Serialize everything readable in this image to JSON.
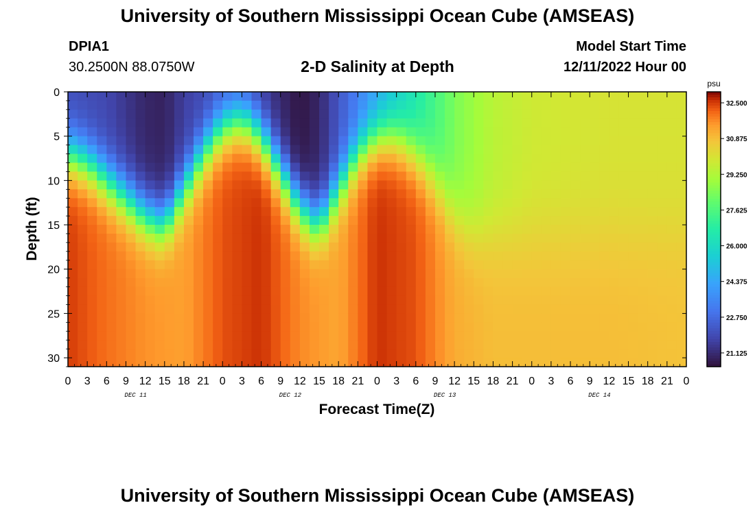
{
  "page": {
    "title": "University of Southern Mississippi Ocean Cube (AMSEAS)",
    "title_repeat": "University of Southern Mississippi Ocean Cube (AMSEAS)",
    "station_id": "DPIA1",
    "station_coords": "30.2500N  88.0750W",
    "plot_title": "2-D Salinity at Depth",
    "model_start_label": "Model Start Time",
    "model_start_value": "12/11/2022 Hour 00"
  },
  "chart_data": {
    "type": "heatmap",
    "title": "2-D Salinity at Depth",
    "xlabel": "Forecast Time(Z)",
    "ylabel": "Depth (ft)",
    "x_range_hours": [
      0,
      96
    ],
    "y_range_ft": [
      0,
      31
    ],
    "y_inverted": true,
    "x_tick_step_hours": 3,
    "x_tick_labels": [
      "0",
      "3",
      "6",
      "9",
      "12",
      "15",
      "18",
      "21",
      "0",
      "3",
      "6",
      "9",
      "12",
      "15",
      "18",
      "21",
      "0",
      "3",
      "6",
      "9",
      "12",
      "15",
      "18",
      "21",
      "0",
      "3",
      "6",
      "9",
      "12",
      "15",
      "18",
      "21",
      "0"
    ],
    "y_ticks": [
      0,
      5,
      10,
      15,
      20,
      25,
      30
    ],
    "day_labels": [
      "DEC 11",
      "DEC 12",
      "DEC 13",
      "DEC 14"
    ],
    "colorbar": {
      "unit": "psu",
      "min": 20.5,
      "max": 33.0,
      "tick_values": [
        32.5,
        30.875,
        29.25,
        27.625,
        26.0,
        24.375,
        22.75,
        21.125
      ],
      "tick_labels": [
        "32.500",
        "30.875",
        "29.250",
        "27.625",
        "26.000",
        "24.375",
        "22.750",
        "21.125"
      ]
    },
    "field_model": {
      "hour_step": 1.5,
      "depth_step_ft": 1,
      "surface_salinity": [
        [
          0,
          22.0
        ],
        [
          6,
          21.8
        ],
        [
          12,
          21.0
        ],
        [
          15,
          20.9
        ],
        [
          18,
          21.6
        ],
        [
          24,
          22.2
        ],
        [
          27,
          22.0
        ],
        [
          30,
          21.5
        ],
        [
          36,
          20.6
        ],
        [
          39,
          21.0
        ],
        [
          42,
          22.2
        ],
        [
          46,
          23.6
        ],
        [
          50,
          25.0
        ],
        [
          55,
          26.8
        ],
        [
          60,
          28.4
        ],
        [
          66,
          29.4
        ],
        [
          72,
          29.8
        ],
        [
          84,
          30.0
        ],
        [
          96,
          30.0
        ]
      ],
      "bottom_salinity": [
        [
          0,
          32.5
        ],
        [
          6,
          32.0
        ],
        [
          12,
          31.6
        ],
        [
          18,
          31.4
        ],
        [
          24,
          32.3
        ],
        [
          30,
          32.6
        ],
        [
          36,
          31.7
        ],
        [
          42,
          31.3
        ],
        [
          48,
          32.6
        ],
        [
          54,
          32.3
        ],
        [
          60,
          31.2
        ],
        [
          66,
          30.9
        ],
        [
          72,
          30.9
        ],
        [
          84,
          30.9
        ],
        [
          96,
          30.8
        ]
      ],
      "halocline_depth_ft": [
        [
          0,
          7
        ],
        [
          3,
          8
        ],
        [
          6,
          10
        ],
        [
          9,
          12
        ],
        [
          12,
          14
        ],
        [
          15,
          15
        ],
        [
          18,
          11
        ],
        [
          21,
          7
        ],
        [
          24,
          4
        ],
        [
          27,
          3
        ],
        [
          30,
          5
        ],
        [
          33,
          9
        ],
        [
          36,
          13
        ],
        [
          39,
          15
        ],
        [
          42,
          11
        ],
        [
          45,
          7
        ],
        [
          48,
          5
        ],
        [
          51,
          5
        ],
        [
          54,
          7
        ],
        [
          57,
          10
        ],
        [
          60,
          14
        ],
        [
          63,
          16
        ],
        [
          66,
          16
        ],
        [
          72,
          16
        ],
        [
          84,
          16
        ],
        [
          96,
          16
        ]
      ],
      "halocline_thickness_ft": [
        [
          0,
          4
        ],
        [
          48,
          4
        ],
        [
          60,
          5
        ],
        [
          66,
          6
        ],
        [
          72,
          7
        ],
        [
          96,
          7
        ]
      ]
    }
  }
}
